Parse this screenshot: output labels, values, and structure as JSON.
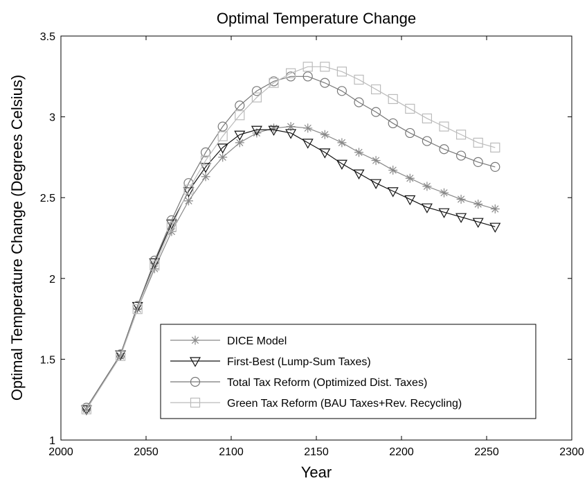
{
  "chart_data": {
    "type": "line",
    "title": "Optimal Temperature Change",
    "xlabel": "Year",
    "ylabel": "Optimal Temperature Change (Degrees Celsius)",
    "xlim": [
      2000,
      2300
    ],
    "ylim": [
      1,
      3.5
    ],
    "xticks": [
      "2000",
      "2050",
      "2100",
      "2150",
      "2200",
      "2250",
      "2300"
    ],
    "yticks": [
      "1",
      "1.5",
      "2",
      "2.5",
      "3",
      "3.5"
    ],
    "grid": false,
    "legend_position": "bottom-right",
    "x": [
      2015,
      2035,
      2045,
      2055,
      2065,
      2075,
      2085,
      2095,
      2105,
      2115,
      2125,
      2135,
      2145,
      2155,
      2165,
      2175,
      2185,
      2195,
      2205,
      2215,
      2225,
      2235,
      2245,
      2255
    ],
    "series": [
      {
        "name": "DICE Model",
        "color": "#888888",
        "marker": "asterisk",
        "values": [
          1.19,
          1.52,
          1.81,
          2.06,
          2.29,
          2.48,
          2.63,
          2.75,
          2.84,
          2.9,
          2.93,
          2.94,
          2.93,
          2.89,
          2.84,
          2.78,
          2.73,
          2.67,
          2.62,
          2.57,
          2.53,
          2.49,
          2.46,
          2.43
        ]
      },
      {
        "name": "First-Best (Lump-Sum Taxes)",
        "color": "#111111",
        "marker": "triangle-down",
        "values": [
          1.19,
          1.53,
          1.83,
          2.1,
          2.34,
          2.54,
          2.69,
          2.81,
          2.89,
          2.92,
          2.92,
          2.9,
          2.84,
          2.78,
          2.71,
          2.65,
          2.59,
          2.54,
          2.49,
          2.44,
          2.41,
          2.38,
          2.35,
          2.32
        ]
      },
      {
        "name": "Total Tax Reform (Optimized Dist. Taxes)",
        "color": "#777777",
        "marker": "circle",
        "values": [
          1.2,
          1.53,
          1.83,
          2.11,
          2.36,
          2.59,
          2.78,
          2.94,
          3.07,
          3.16,
          3.22,
          3.25,
          3.25,
          3.21,
          3.16,
          3.09,
          3.03,
          2.96,
          2.9,
          2.85,
          2.8,
          2.76,
          2.72,
          2.69
        ]
      },
      {
        "name": "Green Tax Reform (BAU Taxes+Rev. Recycling)",
        "color": "#bbbbbb",
        "marker": "square",
        "values": [
          1.19,
          1.52,
          1.81,
          2.08,
          2.32,
          2.55,
          2.73,
          2.88,
          3.01,
          3.12,
          3.21,
          3.27,
          3.31,
          3.31,
          3.28,
          3.23,
          3.17,
          3.11,
          3.05,
          2.99,
          2.94,
          2.89,
          2.84,
          2.81
        ]
      }
    ]
  }
}
